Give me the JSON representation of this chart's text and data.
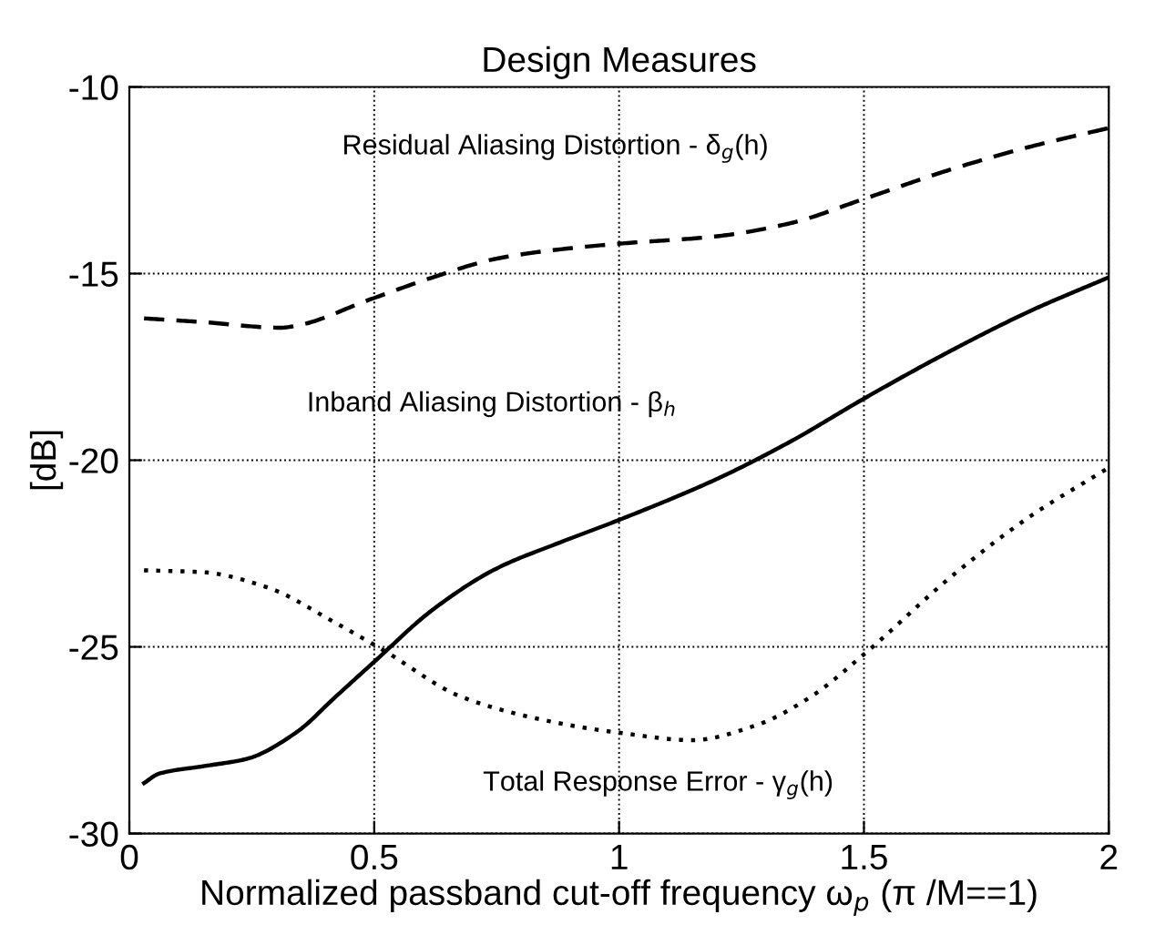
{
  "chart_data": {
    "type": "line",
    "title": "Design Measures",
    "xlabel": "Normalized passband cut-off frequency ω$_{p}$ (π /M==1)",
    "ylabel": "[dB]",
    "xlim": [
      0,
      2
    ],
    "ylim": [
      -30,
      -10
    ],
    "xticks": [
      0,
      0.5,
      1,
      1.5,
      2
    ],
    "yticks": [
      -30,
      -25,
      -20,
      -15,
      -10
    ],
    "grid": true,
    "series": [
      {
        "color": "#000000",
        "line_style": "dashed",
        "x": [
          0.03,
          0.15,
          0.31,
          0.34,
          0.49,
          0.62,
          0.75,
          0.88,
          1.0,
          1.2,
          1.35,
          1.5,
          1.68,
          1.84,
          2.0
        ],
        "values": [
          -16.2,
          -16.3,
          -16.45,
          -16.4,
          -15.7,
          -15.1,
          -14.6,
          -14.35,
          -14.2,
          -14.0,
          -13.65,
          -13.0,
          -12.2,
          -11.6,
          -11.1
        ]
      },
      {
        "color": "#000000",
        "line_style": "solid",
        "x": [
          0.03,
          0.06,
          0.15,
          0.24,
          0.34,
          0.42,
          0.5,
          0.62,
          0.75,
          0.88,
          1.0,
          1.2,
          1.35,
          1.5,
          1.68,
          1.84,
          2.0
        ],
        "values": [
          -28.65,
          -28.4,
          -28.2,
          -28.0,
          -27.3,
          -26.35,
          -25.4,
          -24.0,
          -22.9,
          -22.2,
          -21.6,
          -20.5,
          -19.5,
          -18.35,
          -17.05,
          -16.0,
          -15.1
        ]
      },
      {
        "color": "#000000",
        "line_style": "dotted",
        "x": [
          0.03,
          0.15,
          0.28,
          0.42,
          0.52,
          0.68,
          0.88,
          1.0,
          1.15,
          1.28,
          1.39,
          1.5,
          1.68,
          1.84,
          2.0
        ],
        "values": [
          -22.95,
          -23.0,
          -23.4,
          -24.35,
          -25.1,
          -26.35,
          -27.05,
          -27.3,
          -27.5,
          -27.1,
          -26.35,
          -25.2,
          -23.1,
          -21.5,
          -20.2
        ]
      }
    ],
    "annotations": [
      "Residual Aliasing Distortion - δ$_{g}$(h)",
      "Inband Aliasing Distortion - β$_{h}$",
      "Total Response Error - γ$_{g}$(h)"
    ]
  }
}
